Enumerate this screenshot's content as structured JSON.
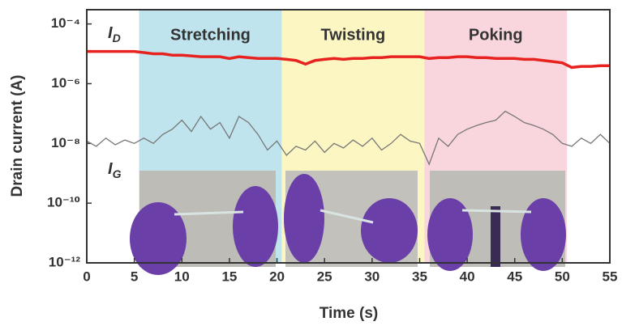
{
  "chart_data": {
    "type": "line",
    "x_label": "Time (s)",
    "y_label": "Drain current (A)",
    "ylog": true,
    "xlim": [
      0,
      55
    ],
    "xticks": [
      0,
      5,
      10,
      15,
      20,
      25,
      30,
      35,
      40,
      45,
      50,
      55
    ],
    "ylim": [
      1e-12,
      0.0003
    ],
    "yticks": [
      {
        "value": 1e-12,
        "label": "10⁻¹²"
      },
      {
        "value": 1e-10,
        "label": "10⁻¹⁰"
      },
      {
        "value": 1e-08,
        "label": "10⁻⁸"
      },
      {
        "value": 1e-06,
        "label": "10⁻⁶"
      },
      {
        "value": 0.0001,
        "label": "10⁻⁴"
      }
    ],
    "regions": [
      {
        "label": "Stretching",
        "start": 5.5,
        "end": 20.5,
        "color": "#bfe4ee"
      },
      {
        "label": "Twisting",
        "start": 20.5,
        "end": 35.5,
        "color": "#fbf6c2"
      },
      {
        "label": "Poking",
        "start": 35.5,
        "end": 50.5,
        "color": "#f9d6de"
      }
    ],
    "x": [
      0,
      1,
      2,
      3,
      4,
      5,
      6,
      7,
      8,
      9,
      10,
      11,
      12,
      13,
      14,
      15,
      16,
      17,
      18,
      19,
      20,
      21,
      22,
      23,
      24,
      25,
      26,
      27,
      28,
      29,
      30,
      31,
      32,
      33,
      34,
      35,
      36,
      37,
      38,
      39,
      40,
      41,
      42,
      43,
      44,
      45,
      46,
      47,
      48,
      49,
      50,
      51,
      52,
      53,
      54,
      55
    ],
    "series": [
      {
        "name": "ID",
        "color": "#e8231f",
        "values": [
          1.2e-05,
          1.2e-05,
          1.2e-05,
          1.2e-05,
          1.2e-05,
          1.2e-05,
          1.1e-05,
          1e-05,
          1e-05,
          9e-06,
          9e-06,
          8.5e-06,
          8e-06,
          8e-06,
          8e-06,
          7e-06,
          8e-06,
          7.5e-06,
          7e-06,
          7e-06,
          7e-06,
          6.5e-06,
          6e-06,
          4.5e-06,
          6e-06,
          6.5e-06,
          7e-06,
          6.5e-06,
          7e-06,
          7e-06,
          7.5e-06,
          7.5e-06,
          8e-06,
          8e-06,
          8e-06,
          8e-06,
          7e-06,
          7.5e-06,
          7.5e-06,
          8e-06,
          8e-06,
          7.5e-06,
          7.5e-06,
          7e-06,
          7e-06,
          7e-06,
          6.5e-06,
          6.5e-06,
          6e-06,
          5.5e-06,
          5e-06,
          3.5e-06,
          3.8e-06,
          3.8e-06,
          4e-06,
          4e-06
        ]
      },
      {
        "name": "IG",
        "color": "#777777",
        "values": [
          1.2e-08,
          8e-09,
          1.5e-08,
          9e-09,
          1.3e-08,
          1e-08,
          1.5e-08,
          1e-08,
          2e-08,
          3e-08,
          6e-08,
          2.5e-08,
          8e-08,
          3e-08,
          5e-08,
          1.5e-08,
          8e-08,
          5e-08,
          2e-08,
          6e-09,
          1.2e-08,
          4e-09,
          8e-09,
          6e-09,
          1.2e-08,
          5e-09,
          1e-08,
          7e-09,
          1.3e-08,
          8e-09,
          1.5e-08,
          6e-09,
          1e-08,
          2e-08,
          1.2e-08,
          1e-08,
          2e-09,
          1.5e-08,
          8e-09,
          2e-08,
          3e-08,
          4e-08,
          5e-08,
          6e-08,
          1.2e-07,
          8e-08,
          5e-08,
          4e-08,
          3e-08,
          2e-08,
          1e-08,
          8e-09,
          1.5e-08,
          1e-08,
          2e-08,
          1e-08
        ]
      }
    ]
  }
}
